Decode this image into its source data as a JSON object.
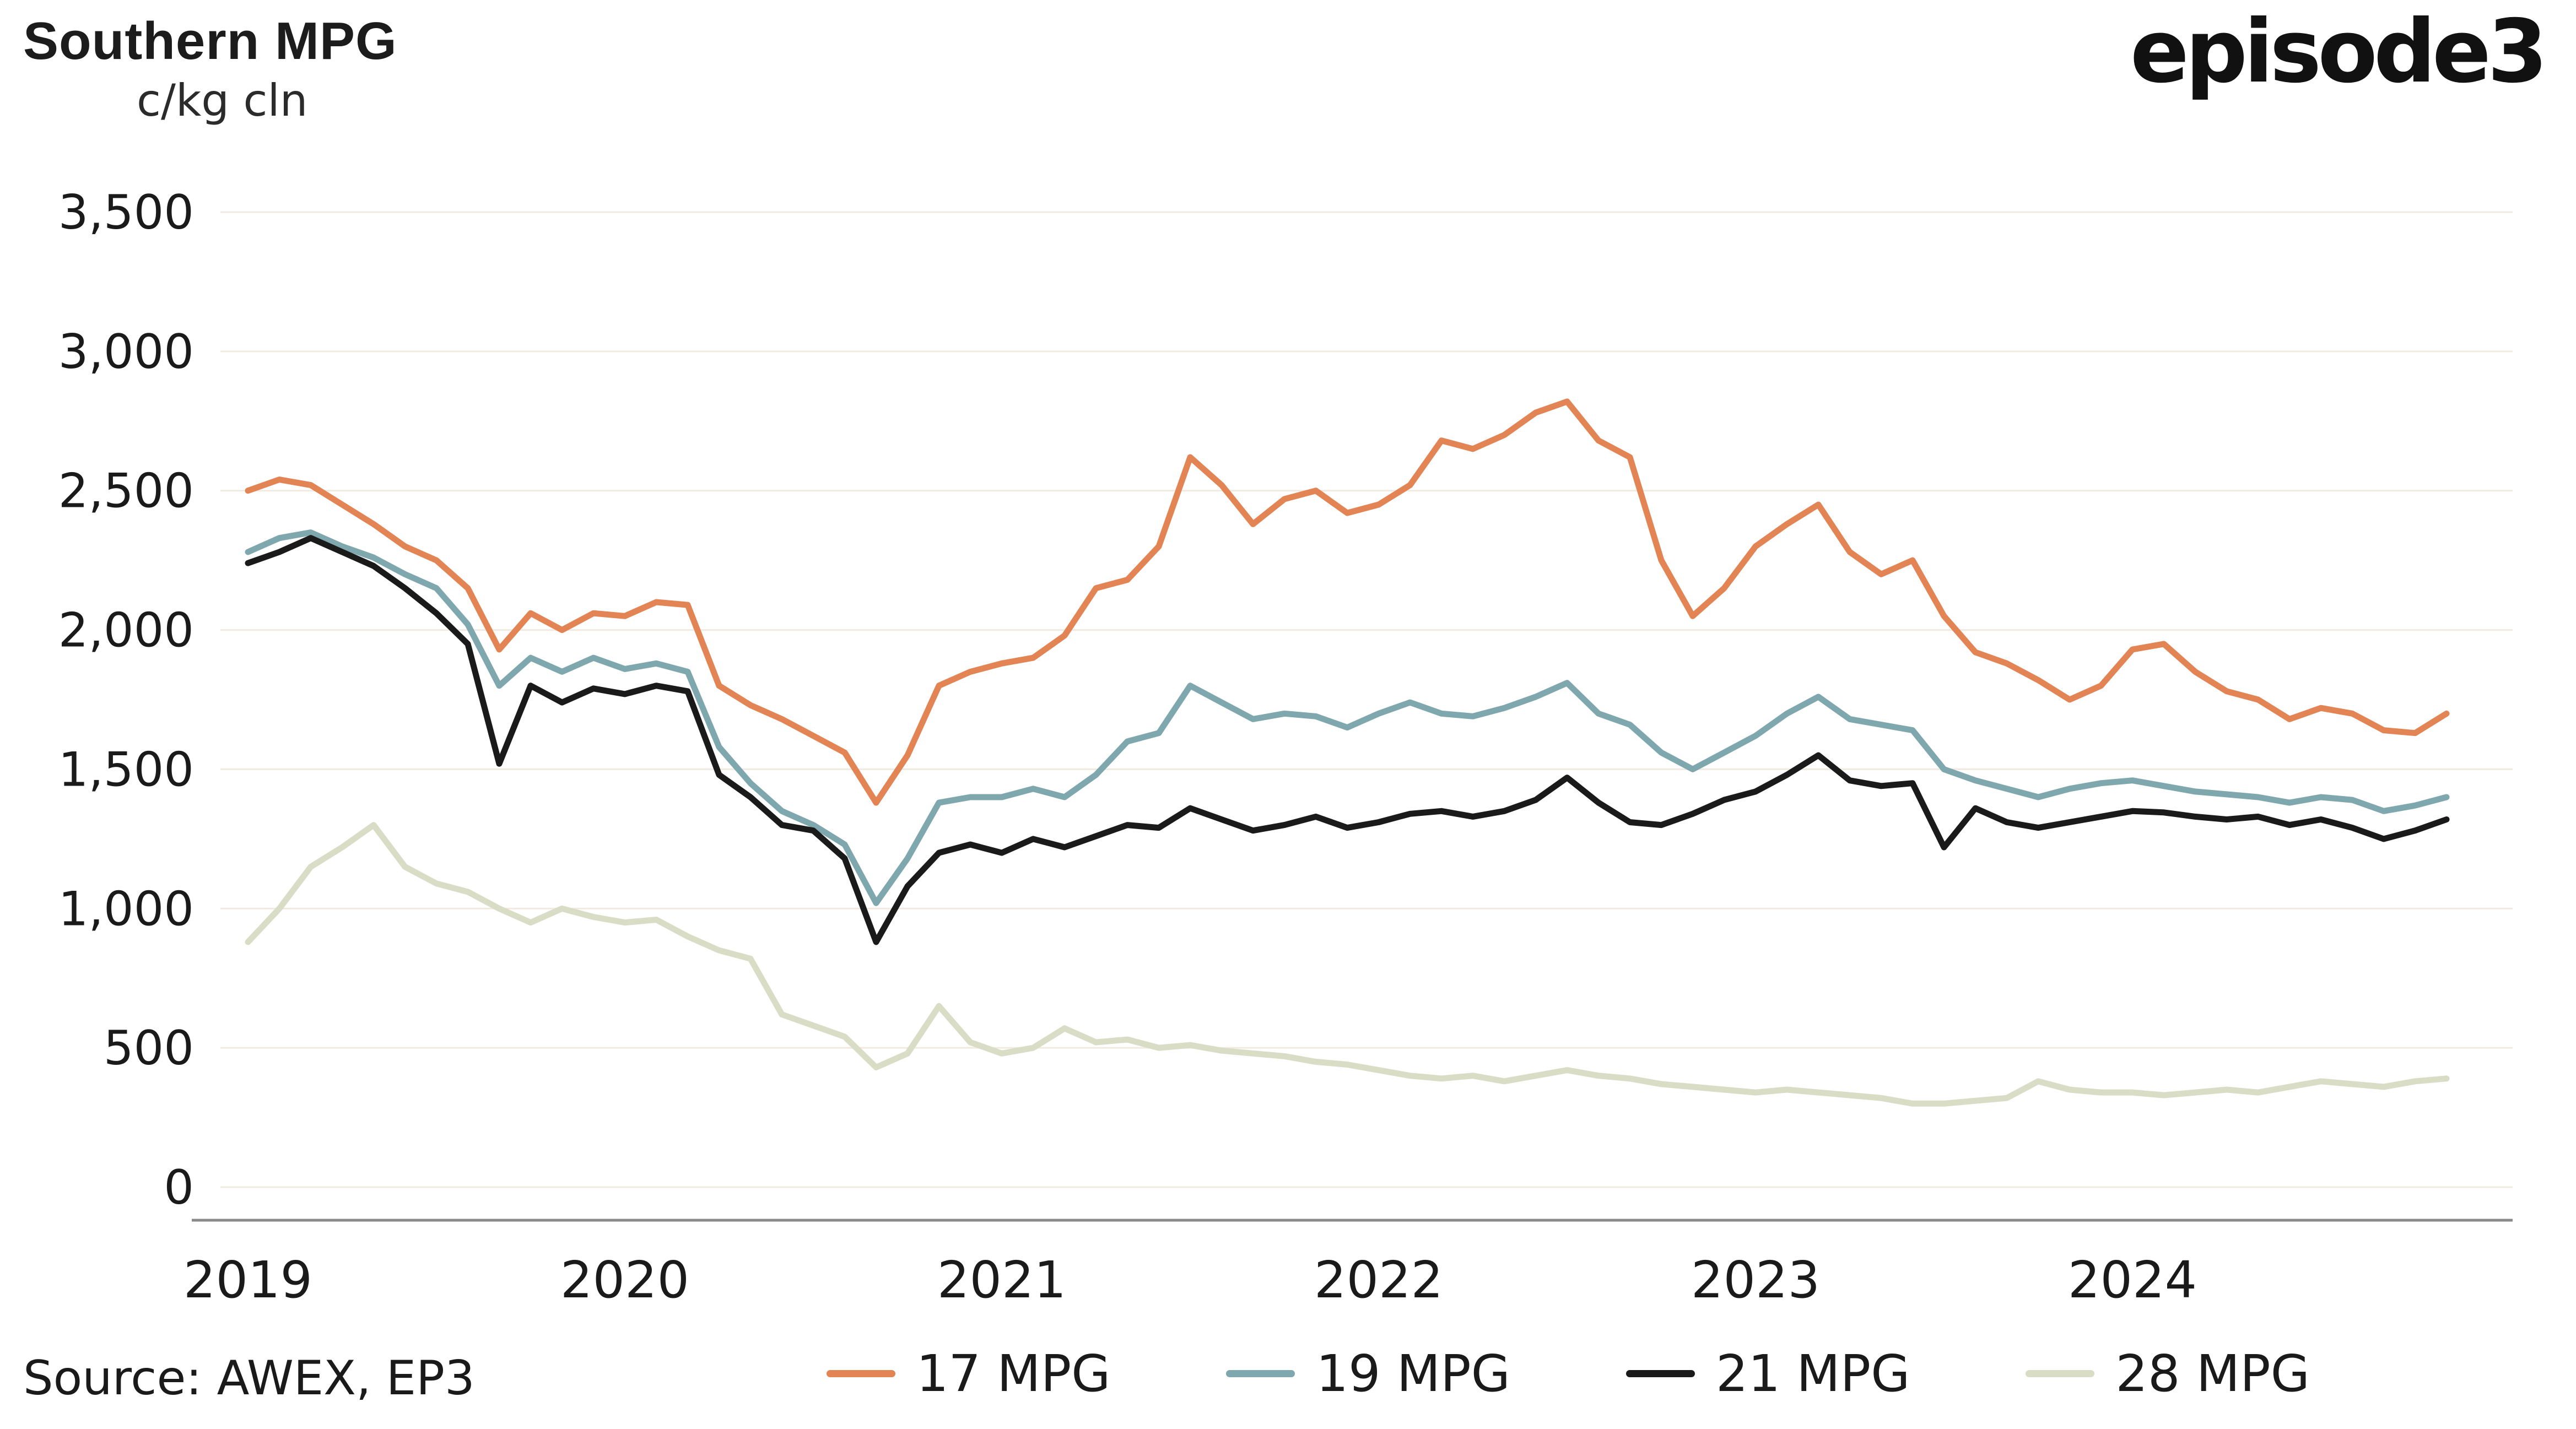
{
  "header": {
    "title": "Southern MPG",
    "units_label": "c/kg cln",
    "logo_text": "episode3"
  },
  "footer": {
    "source": "Source: AWEX, EP3"
  },
  "colors": {
    "gridline": "#F0EAE0",
    "axis_line": "#8A8A8A",
    "text": "#1A1A1A"
  },
  "chart_data": {
    "type": "line",
    "title": "Southern MPG",
    "ylabel": "c/kg cln",
    "xlabel": "",
    "ylim": [
      0,
      3500
    ],
    "grid": "horizontal",
    "legend_position": "bottom",
    "x_start": 2019.0,
    "x_step": 0.0833333,
    "x_unit": "monthly, Jan 2019 - Nov 2024",
    "y_ticks": [
      {
        "value": 0,
        "label": "0"
      },
      {
        "value": 500,
        "label": "500"
      },
      {
        "value": 1000,
        "label": "1,000"
      },
      {
        "value": 1500,
        "label": "1,500"
      },
      {
        "value": 2000,
        "label": "2,000"
      },
      {
        "value": 2500,
        "label": "2,500"
      },
      {
        "value": 3000,
        "label": "3,000"
      },
      {
        "value": 3500,
        "label": "3,500"
      }
    ],
    "x_ticks": [
      {
        "value": 2019,
        "label": "2019"
      },
      {
        "value": 2020,
        "label": "2020"
      },
      {
        "value": 2021,
        "label": "2021"
      },
      {
        "value": 2022,
        "label": "2022"
      },
      {
        "value": 2023,
        "label": "2023"
      },
      {
        "value": 2024,
        "label": "2024"
      }
    ],
    "series": [
      {
        "name": "17 MPG",
        "color": "#E2особ8454",
        "values": []
      }
    ]
  }
}
